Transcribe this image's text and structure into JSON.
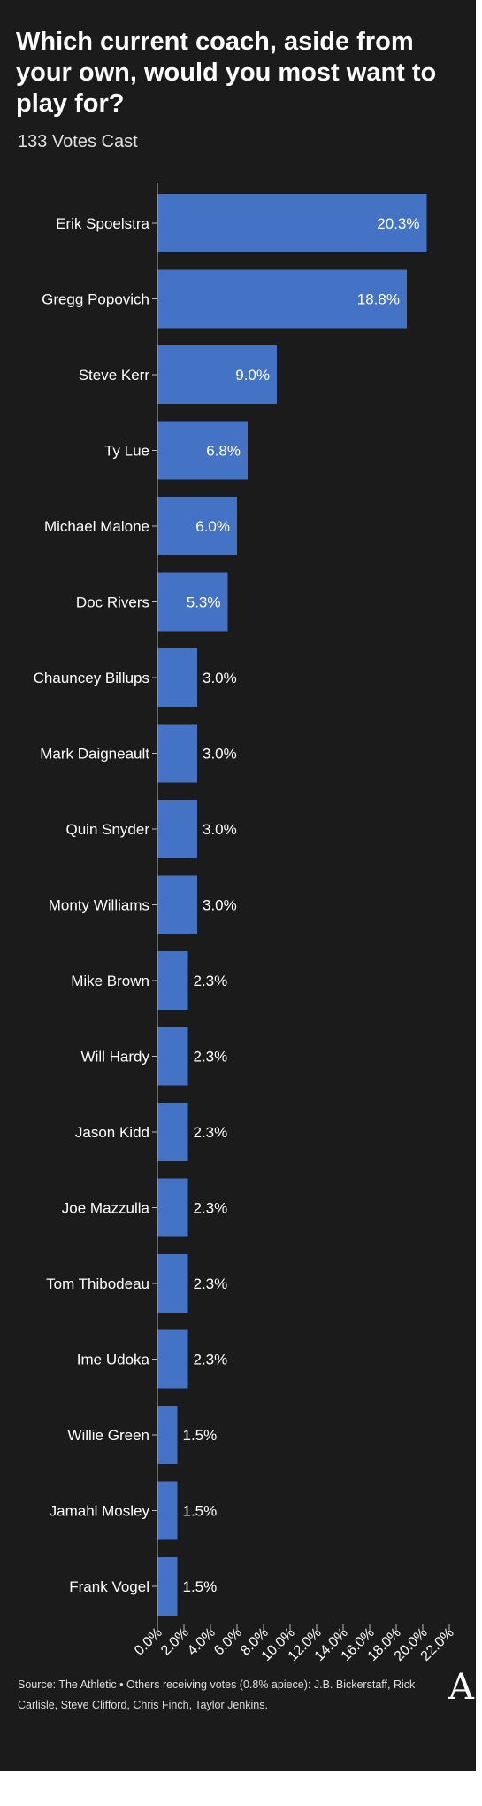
{
  "chart_data": {
    "type": "bar",
    "orientation": "horizontal",
    "title": "Which current coach, aside from your own, would you most want to play for?",
    "subtitle": "133 Votes Cast",
    "categories": [
      "Erik Spoelstra",
      "Gregg Popovich",
      "Steve Kerr",
      "Ty Lue",
      "Michael Malone",
      "Doc Rivers",
      "Chauncey Billups",
      "Mark Daigneault",
      "Quin Snyder",
      "Monty Williams",
      "Mike Brown",
      "Will Hardy",
      "Jason Kidd",
      "Joe Mazzulla",
      "Tom Thibodeau",
      "Ime Udoka",
      "Willie Green",
      "Jamahl Mosley",
      "Frank Vogel"
    ],
    "values": [
      20.3,
      18.8,
      9.0,
      6.8,
      6.0,
      5.3,
      3.0,
      3.0,
      3.0,
      3.0,
      2.3,
      2.3,
      2.3,
      2.3,
      2.3,
      2.3,
      1.5,
      1.5,
      1.5
    ],
    "data_labels": [
      "20.3%",
      "18.8%",
      "9.0%",
      "6.8%",
      "6.0%",
      "5.3%",
      "3.0%",
      "3.0%",
      "3.0%",
      "3.0%",
      "2.3%",
      "2.3%",
      "2.3%",
      "2.3%",
      "2.3%",
      "2.3%",
      "1.5%",
      "1.5%",
      "1.5%"
    ],
    "xlim": [
      0,
      22
    ],
    "x_ticks": [
      "0.0%",
      "2.0%",
      "4.0%",
      "6.0%",
      "8.0%",
      "10.0%",
      "12.0%",
      "14.0%",
      "16.0%",
      "18.0%",
      "20.0%",
      "22.0%"
    ],
    "xlabel": "",
    "ylabel": "",
    "grid": false,
    "bar_color": "#4472c4",
    "background_color": "#1b1b1b",
    "label_inside_threshold": 5
  },
  "footer": {
    "source": "Source: The Athletic • Others receiving votes (0.8% apiece): J.B. Bickerstaff, Rick Carlisle, Steve Clifford, Chris Finch, Taylor Jenkins."
  },
  "logo": {
    "mark": "A"
  }
}
